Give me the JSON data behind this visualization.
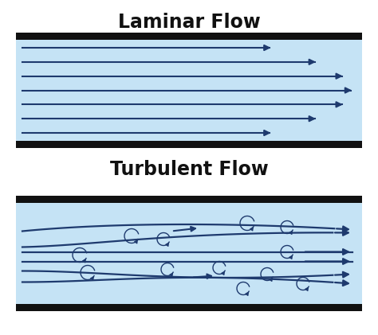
{
  "title_laminar": "Laminar Flow",
  "title_turbulent": "Turbulent Flow",
  "bg_color": "#ffffff",
  "channel_color": "#c5e3f5",
  "wall_color": "#111111",
  "arrow_color": "#1e3a6e",
  "title_fontsize": 17,
  "title_fontweight": "bold"
}
